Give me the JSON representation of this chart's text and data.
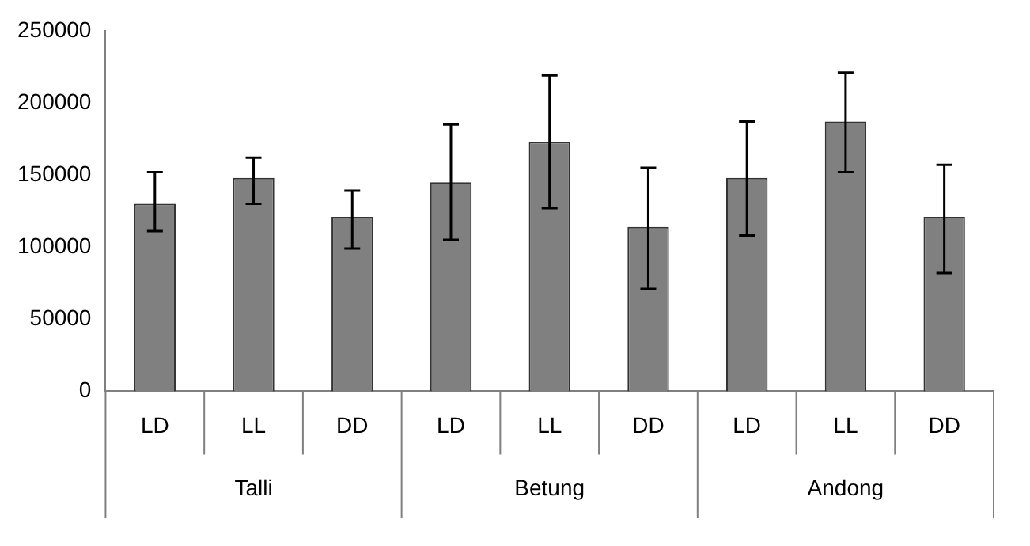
{
  "chart_data": {
    "type": "bar",
    "categories": [
      "LD",
      "LL",
      "DD",
      "LD",
      "LL",
      "DD",
      "LD",
      "LL",
      "DD"
    ],
    "values": [
      130000,
      148000,
      121000,
      145000,
      173000,
      114000,
      148000,
      187000,
      121000
    ],
    "errors": [
      [
        111000,
        152000
      ],
      [
        130000,
        162000
      ],
      [
        99000,
        139000
      ],
      [
        105000,
        185000
      ],
      [
        127000,
        219000
      ],
      [
        71000,
        155000
      ],
      [
        108000,
        187000
      ],
      [
        152000,
        221000
      ],
      [
        82000,
        157000
      ]
    ],
    "color": "#808080",
    "ylim": [
      0,
      250000
    ],
    "yticks": [
      0,
      50000,
      100000,
      150000,
      200000,
      250000
    ],
    "grid": false,
    "legend": false,
    "annotations": [
      "Talli",
      "Betung",
      "Andong"
    ]
  }
}
